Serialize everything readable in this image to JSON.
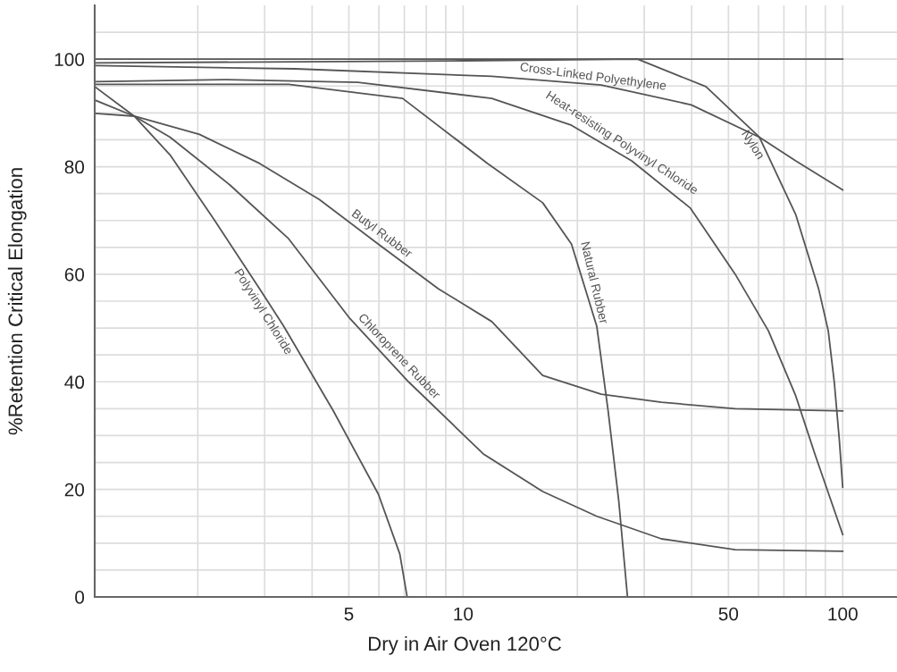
{
  "chart_data": {
    "type": "line",
    "xlabel": "Dry in Air Oven 120°C",
    "ylabel": "%Retention Critical Elongation",
    "log": "x",
    "xlim": [
      1.07,
      139
    ],
    "ylim": [
      0,
      110
    ],
    "xticks": [
      {
        "value": 2,
        "label": null
      },
      {
        "value": 3,
        "label": null
      },
      {
        "value": 4,
        "label": null
      },
      5,
      {
        "value": 6,
        "label": null
      },
      {
        "value": 7,
        "label": null
      },
      {
        "value": 8,
        "label": null
      },
      {
        "value": 9,
        "label": null
      },
      10,
      {
        "value": 20,
        "label": null
      },
      {
        "value": 30,
        "label": null
      },
      {
        "value": 40,
        "label": null
      },
      50,
      {
        "value": 60,
        "label": null
      },
      {
        "value": 70,
        "label": null
      },
      {
        "value": 80,
        "label": null
      },
      {
        "value": 90,
        "label": null
      },
      100
    ],
    "yticks": [
      0,
      {
        "value": 5,
        "label": null
      },
      {
        "value": 10,
        "label": null
      },
      {
        "value": 15,
        "label": null
      },
      20,
      {
        "value": 25,
        "label": null
      },
      {
        "value": 30,
        "label": null
      },
      {
        "value": 35,
        "label": null
      },
      40,
      {
        "value": 45,
        "label": null
      },
      {
        "value": 50,
        "label": null
      },
      {
        "value": 55,
        "label": null
      },
      60,
      {
        "value": 65,
        "label": null
      },
      {
        "value": 70,
        "label": null
      },
      {
        "value": 75,
        "label": null
      },
      80,
      {
        "value": 85,
        "label": null
      },
      {
        "value": 90,
        "label": null
      },
      {
        "value": 95,
        "label": null
      },
      100,
      {
        "value": 105,
        "label": null
      }
    ],
    "grid": true,
    "legend": false,
    "marker": "none",
    "line_style": "solid",
    "series": [
      {
        "color": "#555555",
        "x": [
          1.07,
          100
        ],
        "values": [
          100,
          100
        ]
      },
      {
        "name": "Nylon",
        "color": "#555555",
        "x": [
          1.07,
          10,
          28.8,
          43.6,
          60.3,
          75.2,
          86.4,
          91.6,
          95,
          98,
          100
        ],
        "values": [
          99.3,
          99.7,
          100,
          94.9,
          85.5,
          71.1,
          57.3,
          49.5,
          40.0,
          29.1,
          20.4
        ]
      },
      {
        "name": "Cross-Linked Polyethylene",
        "color": "#555555",
        "x": [
          1.07,
          3.61,
          11.9,
          23.1,
          39.9,
          60.3,
          75.2,
          100
        ],
        "values": [
          98.8,
          98.2,
          96.8,
          95.2,
          91.5,
          85.5,
          81.1,
          75.7
        ]
      },
      {
        "name": "Heat-resisting Polyvinyl Chloride",
        "color": "#555555",
        "x": [
          1.07,
          2.34,
          5.28,
          11.9,
          19.3,
          27.8,
          39.7,
          52.1,
          63.7,
          75.2,
          84.8,
          100
        ],
        "values": [
          95.8,
          96.2,
          95.7,
          92.7,
          87.7,
          81.1,
          72.3,
          60.0,
          49.5,
          37.4,
          26.2,
          11.6
        ]
      },
      {
        "name": "Natural Rubber",
        "color": "#555555",
        "x": [
          1.07,
          3.47,
          6.93,
          11.6,
          16.2,
          19.3,
          22.5,
          24.1,
          25.7,
          27.1
        ],
        "values": [
          95.3,
          95.3,
          92.7,
          80.6,
          73.3,
          65.6,
          50.3,
          34.6,
          17.9,
          0
        ]
      },
      {
        "name": "Butyl Rubber",
        "color": "#555555",
        "x": [
          1.07,
          1.36,
          2.02,
          2.91,
          4.18,
          5.98,
          8.61,
          11.9,
          16.2,
          23.1,
          33.3,
          52.1,
          100
        ],
        "values": [
          89.9,
          89.4,
          86.0,
          80.6,
          73.9,
          65.6,
          57.3,
          51.2,
          41.2,
          37.7,
          36.2,
          35.0,
          34.6
        ]
      },
      {
        "name": "Chloroprene Rubber",
        "color": "#555555",
        "x": [
          1.07,
          1.36,
          1.69,
          2.43,
          3.47,
          5.0,
          7.18,
          11.3,
          16.2,
          22.5,
          33.3,
          52.1,
          100
        ],
        "values": [
          92.4,
          89.4,
          85.5,
          76.6,
          66.6,
          52.0,
          40.0,
          26.6,
          19.6,
          15.0,
          10.8,
          8.8,
          8.5
        ]
      },
      {
        "name": "Polyvinyl Chloride",
        "color": "#555555",
        "x": [
          1.07,
          1.36,
          1.69,
          2.22,
          2.91,
          3.37,
          4.55,
          5.98,
          6.81,
          7.12
        ],
        "values": [
          94.9,
          89.4,
          82.2,
          69.9,
          57.3,
          50.3,
          34.6,
          19.1,
          8.0,
          0
        ]
      }
    ]
  }
}
